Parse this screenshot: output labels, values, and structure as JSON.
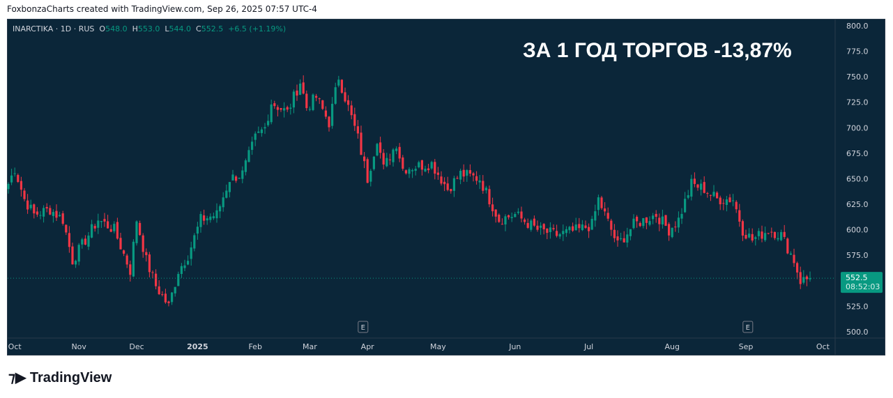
{
  "header": {
    "credit": "FoxbonzaCharts created with TradingView.com, Sep 26, 2025 07:57 UTC-4"
  },
  "legend": {
    "symbol": "INARCTIKA · 1D · RUS",
    "o_label": "O",
    "o": "548.0",
    "h_label": "H",
    "h": "553.0",
    "l_label": "L",
    "l": "544.0",
    "c_label": "C",
    "c": "552.5",
    "change": "+6.5 (+1.19%)"
  },
  "overlay_title": "ЗА 1 ГОД ТОРГОВ -13,87%",
  "last_price": {
    "value": "552.5",
    "countdown": "08:52:03"
  },
  "event_marker": "E",
  "footer": {
    "logo": "TradingView"
  },
  "colors": {
    "up": "#089981",
    "down": "#f23645",
    "bg": "#0b2639"
  },
  "chart_data": {
    "type": "candlestick",
    "title": "INARCTIKA · 1D · RUS",
    "ylim": [
      495,
      805
    ],
    "y_ticks": [
      "800.0",
      "775.0",
      "750.0",
      "725.0",
      "700.0",
      "675.0",
      "650.0",
      "625.0",
      "600.0",
      "575.0",
      "525.0",
      "500.0"
    ],
    "x_ticks": [
      {
        "label": "Oct",
        "day": 2
      },
      {
        "label": "Nov",
        "day": 22
      },
      {
        "label": "Dec",
        "day": 40
      },
      {
        "label": "2025",
        "day": 59
      },
      {
        "label": "Feb",
        "day": 77
      },
      {
        "label": "Mar",
        "day": 94
      },
      {
        "label": "Apr",
        "day": 112
      },
      {
        "label": "May",
        "day": 134
      },
      {
        "label": "Jun",
        "day": 158
      },
      {
        "label": "Jul",
        "day": 181
      },
      {
        "label": "Aug",
        "day": 207
      },
      {
        "label": "Sep",
        "day": 230
      },
      {
        "label": "Oct",
        "day": 254
      }
    ],
    "earnings_days": [
      108,
      228
    ],
    "days": 251,
    "close_keypoints": [
      [
        0,
        645
      ],
      [
        2,
        660
      ],
      [
        5,
        630
      ],
      [
        8,
        615
      ],
      [
        13,
        620
      ],
      [
        17,
        610
      ],
      [
        20,
        570
      ],
      [
        23,
        585
      ],
      [
        28,
        610
      ],
      [
        33,
        600
      ],
      [
        38,
        560
      ],
      [
        40,
        610
      ],
      [
        43,
        570
      ],
      [
        46,
        545
      ],
      [
        50,
        525
      ],
      [
        53,
        560
      ],
      [
        56,
        575
      ],
      [
        60,
        610
      ],
      [
        65,
        615
      ],
      [
        69,
        650
      ],
      [
        73,
        655
      ],
      [
        77,
        690
      ],
      [
        80,
        700
      ],
      [
        82,
        725
      ],
      [
        87,
        715
      ],
      [
        91,
        745
      ],
      [
        93,
        720
      ],
      [
        96,
        730
      ],
      [
        100,
        705
      ],
      [
        103,
        750
      ],
      [
        106,
        720
      ],
      [
        109,
        690
      ],
      [
        112,
        650
      ],
      [
        115,
        690
      ],
      [
        117,
        660
      ],
      [
        121,
        685
      ],
      [
        123,
        660
      ],
      [
        132,
        665
      ],
      [
        137,
        640
      ],
      [
        141,
        655
      ],
      [
        147,
        650
      ],
      [
        153,
        610
      ],
      [
        158,
        615
      ],
      [
        165,
        600
      ],
      [
        171,
        595
      ],
      [
        178,
        600
      ],
      [
        182,
        605
      ],
      [
        184,
        630
      ],
      [
        188,
        600
      ],
      [
        190,
        585
      ],
      [
        195,
        605
      ],
      [
        202,
        615
      ],
      [
        206,
        600
      ],
      [
        209,
        610
      ],
      [
        213,
        645
      ],
      [
        217,
        640
      ],
      [
        221,
        630
      ],
      [
        226,
        630
      ],
      [
        229,
        600
      ],
      [
        232,
        590
      ],
      [
        237,
        600
      ],
      [
        241,
        595
      ],
      [
        245,
        570
      ],
      [
        247,
        550
      ],
      [
        250,
        552.5
      ]
    ]
  }
}
